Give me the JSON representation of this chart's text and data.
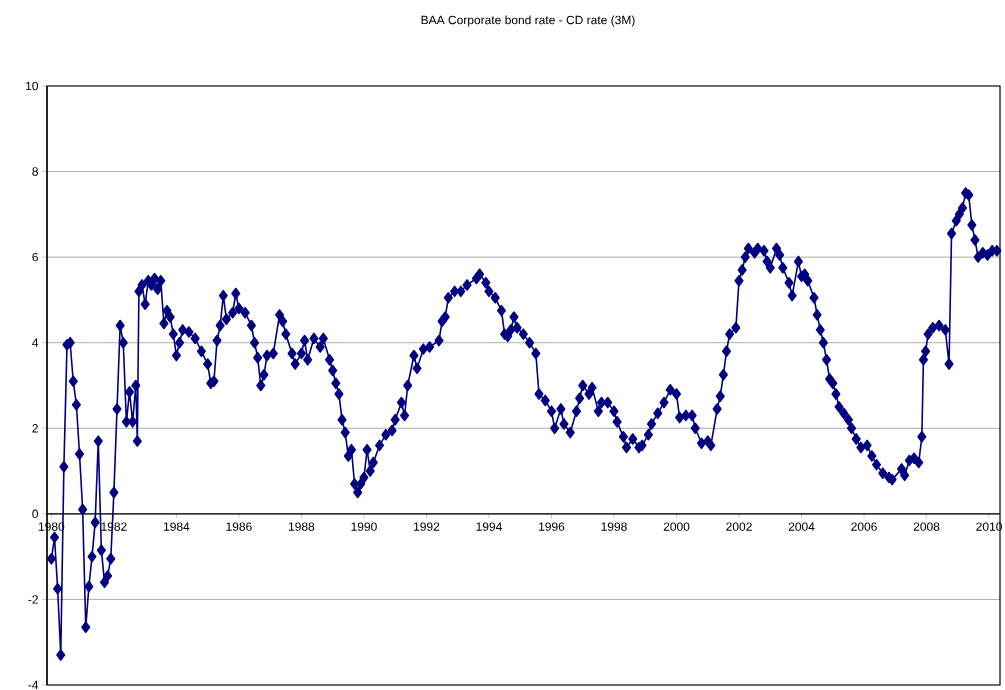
{
  "chart_data": {
    "type": "line",
    "title": "BAA Corporate bond rate - CD rate (3M)",
    "x": [
      1980.0,
      1980.1,
      1980.2,
      1980.3,
      1980.4,
      1980.5,
      1980.6,
      1980.7,
      1980.8,
      1980.9,
      1981.0,
      1981.1,
      1981.2,
      1981.3,
      1981.4,
      1981.5,
      1981.6,
      1981.7,
      1981.8,
      1981.9,
      1982.0,
      1982.1,
      1982.2,
      1982.3,
      1982.4,
      1982.5,
      1982.6,
      1982.7,
      1982.75,
      1982.8,
      1982.9,
      1983.0,
      1983.1,
      1983.2,
      1983.3,
      1983.4,
      1983.5,
      1983.6,
      1983.7,
      1983.8,
      1983.9,
      1984.0,
      1984.1,
      1984.2,
      1984.4,
      1984.6,
      1984.8,
      1985.0,
      1985.1,
      1985.2,
      1985.3,
      1985.4,
      1985.5,
      1985.6,
      1985.8,
      1985.9,
      1986.0,
      1986.2,
      1986.4,
      1986.5,
      1986.6,
      1986.7,
      1986.8,
      1986.9,
      1987.1,
      1987.3,
      1987.4,
      1987.5,
      1987.7,
      1987.8,
      1988.0,
      1988.1,
      1988.2,
      1988.4,
      1988.6,
      1988.7,
      1988.9,
      1989.0,
      1989.1,
      1989.2,
      1989.3,
      1989.4,
      1989.5,
      1989.6,
      1989.7,
      1989.8,
      1989.9,
      1990.0,
      1990.1,
      1990.2,
      1990.3,
      1990.5,
      1990.7,
      1990.9,
      1991.0,
      1991.2,
      1991.3,
      1991.4,
      1991.6,
      1991.7,
      1991.9,
      1992.1,
      1992.4,
      1992.5,
      1992.6,
      1992.7,
      1992.9,
      1993.1,
      1993.3,
      1993.6,
      1993.7,
      1993.9,
      1994.0,
      1994.2,
      1994.4,
      1994.5,
      1994.6,
      1994.7,
      1994.8,
      1994.9,
      1995.1,
      1995.3,
      1995.5,
      1995.6,
      1995.8,
      1996.0,
      1996.1,
      1996.3,
      1996.4,
      1996.6,
      1996.8,
      1996.9,
      1997.0,
      1997.2,
      1997.3,
      1997.5,
      1997.6,
      1997.8,
      1998.0,
      1998.1,
      1998.3,
      1998.4,
      1998.6,
      1998.8,
      1998.9,
      1999.1,
      1999.2,
      1999.4,
      1999.6,
      1999.8,
      2000.0,
      2000.1,
      2000.3,
      2000.5,
      2000.6,
      2000.8,
      2001.0,
      2001.1,
      2001.3,
      2001.4,
      2001.5,
      2001.6,
      2001.7,
      2001.9,
      2002.0,
      2002.1,
      2002.2,
      2002.3,
      2002.5,
      2002.6,
      2002.8,
      2002.9,
      2003.0,
      2003.2,
      2003.3,
      2003.4,
      2003.6,
      2003.7,
      2003.9,
      2004.0,
      2004.1,
      2004.2,
      2004.4,
      2004.5,
      2004.6,
      2004.7,
      2004.8,
      2004.9,
      2005.0,
      2005.1,
      2005.2,
      2005.35,
      2005.5,
      2005.6,
      2005.75,
      2005.9,
      2006.1,
      2006.25,
      2006.4,
      2006.6,
      2006.8,
      2006.9,
      2007.2,
      2007.3,
      2007.45,
      2007.6,
      2007.75,
      2007.85,
      2007.9,
      2007.97,
      2008.05,
      2008.2,
      2008.4,
      2008.6,
      2008.72,
      2008.8,
      2008.95,
      2009.05,
      2009.15,
      2009.25,
      2009.35,
      2009.45,
      2009.55,
      2009.65,
      2009.8,
      2009.95,
      2010.1,
      2010.25
    ],
    "values": [
      -1.05,
      -0.55,
      -1.75,
      -3.3,
      1.1,
      3.95,
      4.0,
      3.1,
      2.55,
      1.4,
      0.1,
      -2.65,
      -1.7,
      -1.0,
      -0.2,
      1.7,
      -0.85,
      -1.6,
      -1.45,
      -1.05,
      0.5,
      2.45,
      4.4,
      4.0,
      2.15,
      2.85,
      2.15,
      3.0,
      1.7,
      5.2,
      5.35,
      4.9,
      5.45,
      5.35,
      5.5,
      5.25,
      5.45,
      4.45,
      4.75,
      4.6,
      4.2,
      3.7,
      4.0,
      4.3,
      4.25,
      4.1,
      3.8,
      3.5,
      3.05,
      3.1,
      4.05,
      4.4,
      5.1,
      4.55,
      4.7,
      5.15,
      4.8,
      4.7,
      4.4,
      4.0,
      3.65,
      3.0,
      3.25,
      3.7,
      3.75,
      4.65,
      4.5,
      4.2,
      3.75,
      3.5,
      3.75,
      4.05,
      3.6,
      4.1,
      3.9,
      4.1,
      3.6,
      3.35,
      3.05,
      2.8,
      2.2,
      1.9,
      1.35,
      1.5,
      0.7,
      0.5,
      0.7,
      0.85,
      1.5,
      1.0,
      1.2,
      1.6,
      1.85,
      1.95,
      2.2,
      2.6,
      2.3,
      3.0,
      3.7,
      3.4,
      3.85,
      3.9,
      4.05,
      4.5,
      4.6,
      5.05,
      5.2,
      5.2,
      5.35,
      5.5,
      5.6,
      5.4,
      5.2,
      5.05,
      4.75,
      4.2,
      4.15,
      4.3,
      4.6,
      4.35,
      4.2,
      4.0,
      3.75,
      2.8,
      2.65,
      2.4,
      2.0,
      2.45,
      2.1,
      1.9,
      2.4,
      2.7,
      3.0,
      2.8,
      2.95,
      2.4,
      2.6,
      2.6,
      2.4,
      2.15,
      1.8,
      1.55,
      1.75,
      1.55,
      1.6,
      1.85,
      2.1,
      2.35,
      2.6,
      2.9,
      2.8,
      2.25,
      2.3,
      2.3,
      2.0,
      1.65,
      1.7,
      1.6,
      2.45,
      2.75,
      3.25,
      3.8,
      4.2,
      4.35,
      5.45,
      5.7,
      6.0,
      6.2,
      6.1,
      6.2,
      6.15,
      5.9,
      5.75,
      6.2,
      6.05,
      5.75,
      5.4,
      5.1,
      5.9,
      5.55,
      5.6,
      5.45,
      5.05,
      4.65,
      4.3,
      4.0,
      3.6,
      3.15,
      3.05,
      2.8,
      2.5,
      2.35,
      2.2,
      2.0,
      1.75,
      1.55,
      1.6,
      1.35,
      1.15,
      0.95,
      0.85,
      0.8,
      1.05,
      0.9,
      1.25,
      1.3,
      1.2,
      1.8,
      3.6,
      3.8,
      4.2,
      4.35,
      4.4,
      4.3,
      3.5,
      6.55,
      6.85,
      7.0,
      7.15,
      7.5,
      7.45,
      6.75,
      6.4,
      6.0,
      6.1,
      6.05,
      6.15,
      6.15
    ],
    "color": "#000080",
    "marker": "diamond",
    "line_style": "solid",
    "grid": "y",
    "xlim": [
      1979.86,
      2010.35
    ],
    "ylim": [
      -4,
      10
    ],
    "xticks": [
      1980,
      1982,
      1984,
      1986,
      1988,
      1990,
      1992,
      1994,
      1996,
      1998,
      2000,
      2002,
      2004,
      2006,
      2008,
      2010
    ],
    "yticks": [
      -4,
      -2,
      0,
      2,
      4,
      6,
      8,
      10
    ]
  }
}
